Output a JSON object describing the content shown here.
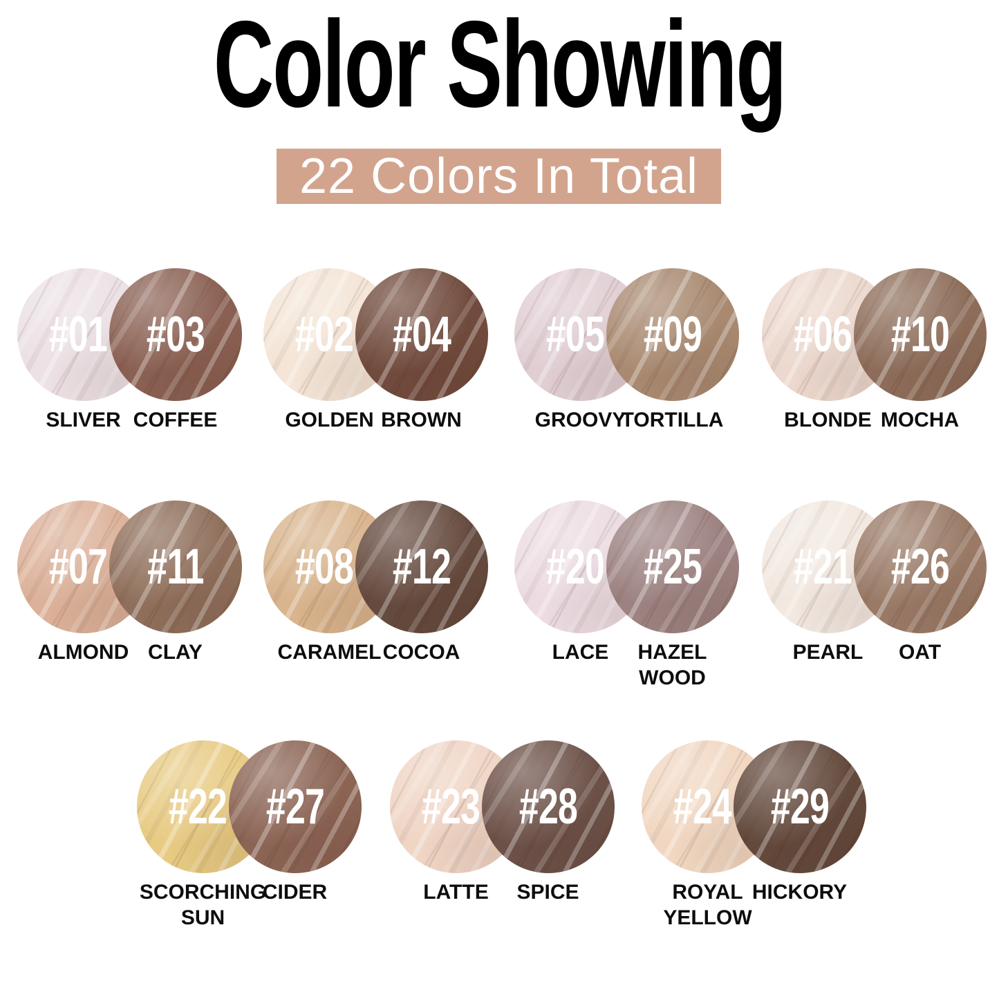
{
  "title": "Color Showing",
  "banner": {
    "label": "22 Colors In Total",
    "background": "#d2a48e",
    "text_color": "#ffffff"
  },
  "rows": [
    [
      {
        "left": {
          "number": "#01",
          "name": "SLIVER",
          "color": "#ece1e5"
        },
        "right": {
          "number": "#03",
          "name": "COFFEE",
          "color": "#8a6052"
        }
      },
      {
        "left": {
          "number": "#02",
          "name": "GOLDEN",
          "color": "#f4e5d6"
        },
        "right": {
          "number": "#04",
          "name": "BROWN",
          "color": "#714b3d"
        }
      },
      {
        "left": {
          "number": "#05",
          "name": "GROOVY",
          "color": "#e0ced3"
        },
        "right": {
          "number": "#09",
          "name": "TORTILLA",
          "color": "#a98a71"
        }
      },
      {
        "left": {
          "number": "#06",
          "name": "BLONDE",
          "color": "#ecd8ce"
        },
        "right": {
          "number": "#10",
          "name": "MOCHA",
          "color": "#8d6d5a"
        }
      }
    ],
    [
      {
        "left": {
          "number": "#07",
          "name": "ALMOND",
          "color": "#dcb199"
        },
        "right": {
          "number": "#11",
          "name": "CLAY",
          "color": "#8f6f5b"
        }
      },
      {
        "left": {
          "number": "#08",
          "name": "CARAMEL",
          "color": "#d9b48d"
        },
        "right": {
          "number": "#12",
          "name": "COCOA",
          "color": "#654a3e"
        }
      },
      {
        "left": {
          "number": "#20",
          "name": "LACE",
          "color": "#ecdce2"
        },
        "right": {
          "number": "#25",
          "name": "HAZEL WOOD",
          "color": "#9c8280"
        }
      },
      {
        "left": {
          "number": "#21",
          "name": "PEARL",
          "color": "#f2e8e0"
        },
        "right": {
          "number": "#26",
          "name": "OAT",
          "color": "#9a7a67"
        }
      }
    ],
    [
      {
        "left": {
          "number": "#22",
          "name": "SCORCHING SUN",
          "color": "#e8cb83"
        },
        "right": {
          "number": "#27",
          "name": "CIDER",
          "color": "#8b6454"
        }
      },
      {
        "left": {
          "number": "#23",
          "name": "LATTE",
          "color": "#f0d5c5"
        },
        "right": {
          "number": "#28",
          "name": "SPICE",
          "color": "#6c5148"
        }
      },
      {
        "left": {
          "number": "#24",
          "name": "ROYAL YELLOW",
          "color": "#f1d7c1"
        },
        "right": {
          "number": "#29",
          "name": "HICKORY",
          "color": "#63493c"
        }
      }
    ]
  ]
}
